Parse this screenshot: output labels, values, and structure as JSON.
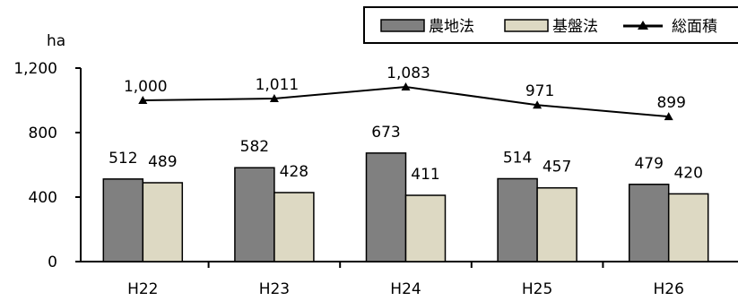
{
  "chart_data": {
    "type": "bar",
    "categories": [
      "H22",
      "H23",
      "H24",
      "H25",
      "H26"
    ],
    "series": [
      {
        "name": "農地法",
        "kind": "bar",
        "color": "#808080",
        "values": [
          512,
          582,
          673,
          514,
          479
        ]
      },
      {
        "name": "基盤法",
        "kind": "bar",
        "color": "#ddd9c3",
        "values": [
          489,
          428,
          411,
          457,
          420
        ]
      },
      {
        "name": "総面積",
        "kind": "line",
        "color": "#000000",
        "marker": "triangle",
        "values": [
          1000,
          1011,
          1083,
          971,
          899
        ],
        "labels": [
          "1,000",
          "1,011",
          "1,083",
          "971",
          "899"
        ]
      }
    ],
    "unit_label": "ha",
    "ylim": [
      0,
      1200
    ],
    "yticks": [
      0,
      400,
      800,
      1200
    ],
    "ytick_labels": [
      "0",
      "400",
      "800",
      "1,200"
    ],
    "legend_position": "top-right",
    "grid": false
  }
}
